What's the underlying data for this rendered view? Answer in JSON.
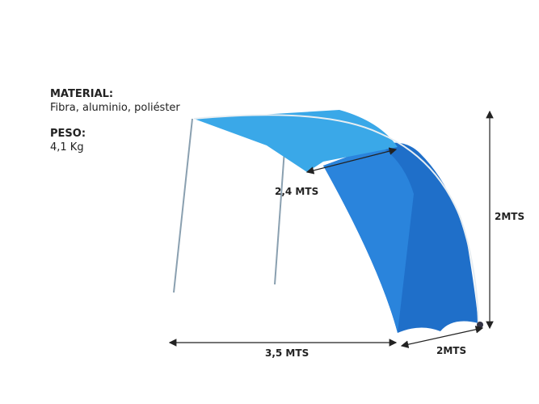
{
  "specs": [
    {
      "label": "MATERIAL:",
      "value": "Fibra, aluminio, poliéster"
    },
    {
      "label": "PESO:",
      "value": "4,1 Kg"
    }
  ],
  "dimensions": {
    "depth": "2,4 MTS",
    "length": "3,5 MTS",
    "height": "2MTS",
    "width": "2MTS"
  }
}
